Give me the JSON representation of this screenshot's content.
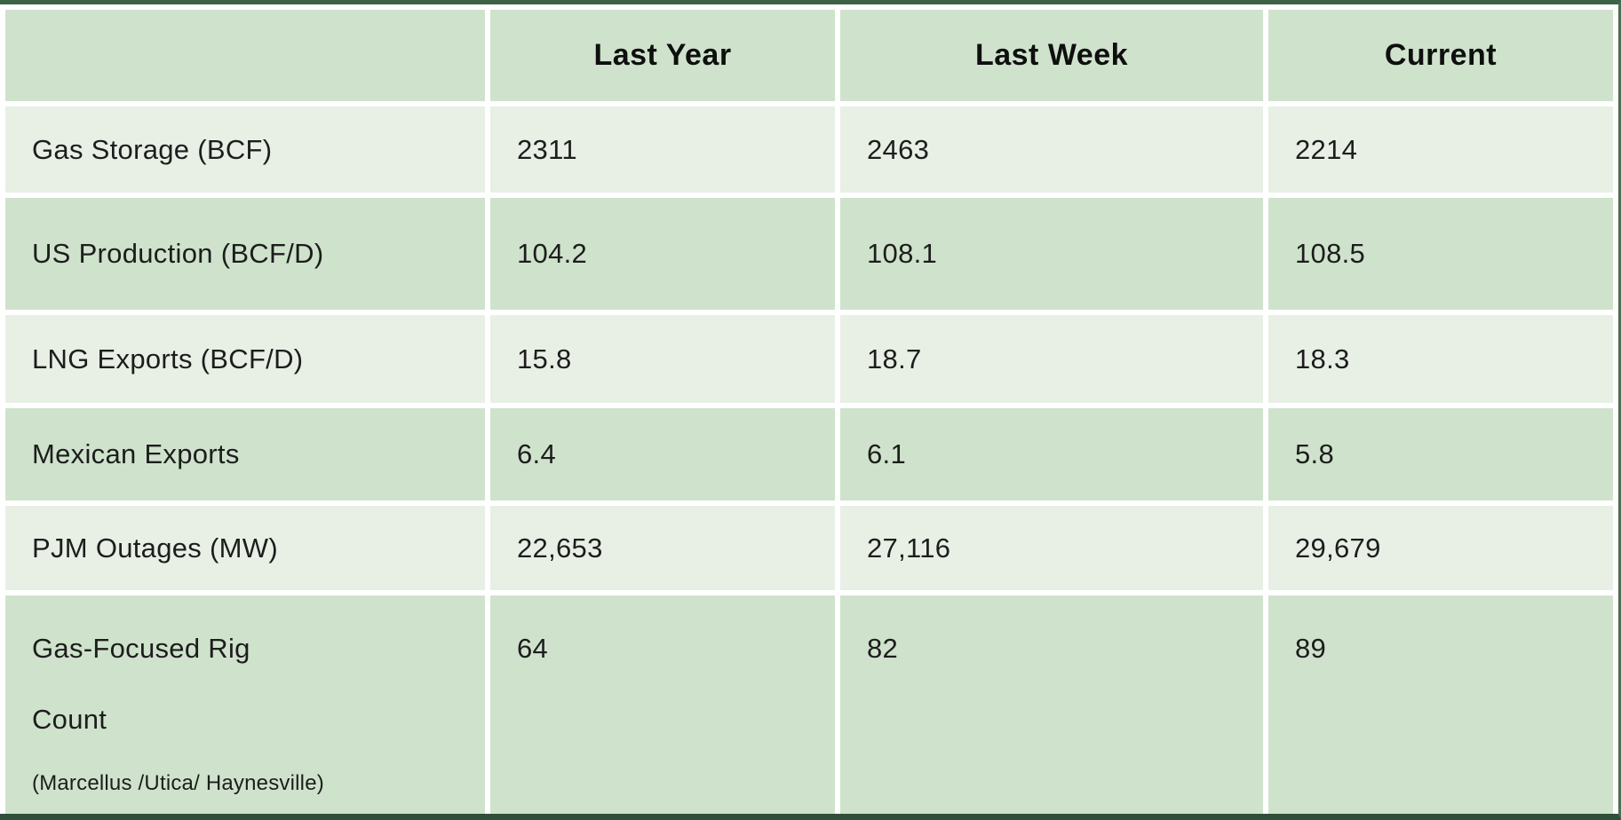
{
  "colors": {
    "frame_border": "#3d6347",
    "frame_border_bottom": "#2e4f38",
    "header_bg": "#cfe3cc",
    "row_dark_bg": "#cfe3cc",
    "row_light_bg": "#e8f0e6",
    "text": "#1d1d1d"
  },
  "table": {
    "columns": [
      "",
      "Last Year",
      "Last Week",
      "Current"
    ],
    "rows": [
      {
        "label": "Gas Storage (BCF)",
        "values": [
          "2311",
          "2463",
          "2214"
        ],
        "shade": "light"
      },
      {
        "label": "US Production (BCF/D)",
        "values": [
          "104.2",
          "108.1",
          "108.5"
        ],
        "shade": "dark"
      },
      {
        "label": "LNG Exports (BCF/D)",
        "values": [
          "15.8",
          "18.7",
          "18.3"
        ],
        "shade": "light"
      },
      {
        "label": "Mexican Exports",
        "values": [
          "6.4",
          "6.1",
          "5.8"
        ],
        "shade": "dark"
      },
      {
        "label": "PJM Outages (MW)",
        "values": [
          "22,653",
          "27,116",
          "29,679"
        ],
        "shade": "light"
      },
      {
        "label": "Gas-Focused Rig Count",
        "label_lines": [
          "Gas-Focused Rig",
          "Count"
        ],
        "sublabel": "(Marcellus /Utica/ Haynesville)",
        "values": [
          "64",
          "82",
          "89"
        ],
        "shade": "dark"
      }
    ]
  },
  "chart_data": {
    "type": "table",
    "title": "",
    "columns": [
      "",
      "Last Year",
      "Last Week",
      "Current"
    ],
    "rows": [
      [
        "Gas Storage (BCF)",
        "2311",
        "2463",
        "2214"
      ],
      [
        "US Production (BCF/D)",
        "104.2",
        "108.1",
        "108.5"
      ],
      [
        "LNG Exports (BCF/D)",
        "15.8",
        "18.7",
        "18.3"
      ],
      [
        "Mexican Exports",
        "6.4",
        "6.1",
        "5.8"
      ],
      [
        "PJM Outages (MW)",
        "22,653",
        "27,116",
        "29,679"
      ],
      [
        "Gas-Focused Rig Count (Marcellus /Utica/ Haynesville)",
        "64",
        "82",
        "89"
      ]
    ]
  }
}
